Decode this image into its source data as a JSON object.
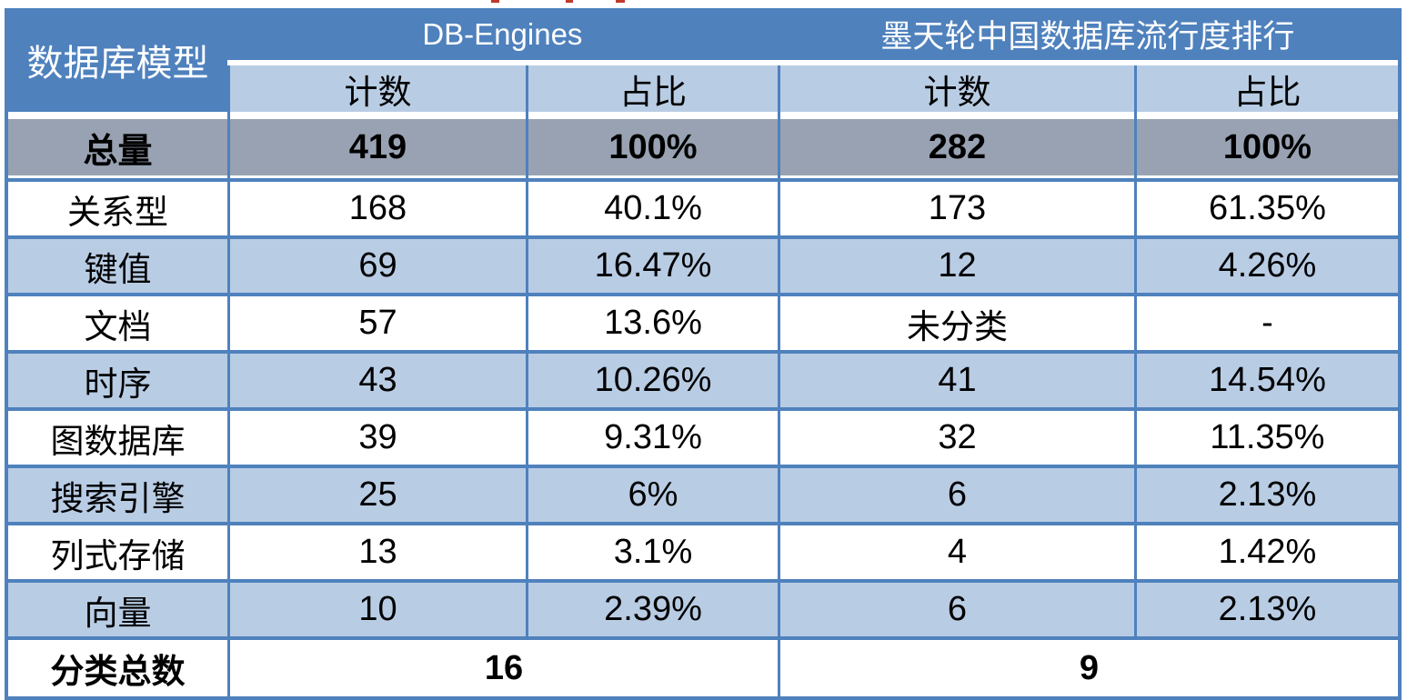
{
  "chart_data": {
    "type": "table",
    "corner_header": "数据库模型",
    "column_groups": [
      "DB-Engines",
      "墨天轮中国数据库流行度排行"
    ],
    "sub_columns": [
      "计数",
      "占比",
      "计数",
      "占比"
    ],
    "total_row": {
      "label": "总量",
      "values": [
        "419",
        "100%",
        "282",
        "100%"
      ]
    },
    "rows": [
      {
        "label": "关系型",
        "values": [
          "168",
          "40.1%",
          "173",
          "61.35%"
        ]
      },
      {
        "label": "键值",
        "values": [
          "69",
          "16.47%",
          "12",
          "4.26%"
        ]
      },
      {
        "label": "文档",
        "values": [
          "57",
          "13.6%",
          "未分类",
          "-"
        ]
      },
      {
        "label": "时序",
        "values": [
          "43",
          "10.26%",
          "41",
          "14.54%"
        ]
      },
      {
        "label": "图数据库",
        "values": [
          "39",
          "9.31%",
          "32",
          "11.35%"
        ]
      },
      {
        "label": "搜索引擎",
        "values": [
          "25",
          "6%",
          "6",
          "2.13%"
        ]
      },
      {
        "label": "列式存储",
        "values": [
          "13",
          "3.1%",
          "4",
          "1.42%"
        ]
      },
      {
        "label": "向量",
        "values": [
          "10",
          "2.39%",
          "6",
          "2.13%"
        ]
      }
    ],
    "footer": {
      "label": "分类总数",
      "values": [
        "16",
        "9"
      ]
    }
  },
  "colors": {
    "header_blue": "#4F81BD",
    "row_light_blue": "#B8CCE4",
    "total_row_gray": "#98A2B2",
    "border_blue": "#4F81BD",
    "header_text": "#ffffff",
    "body_text": "#000000"
  }
}
